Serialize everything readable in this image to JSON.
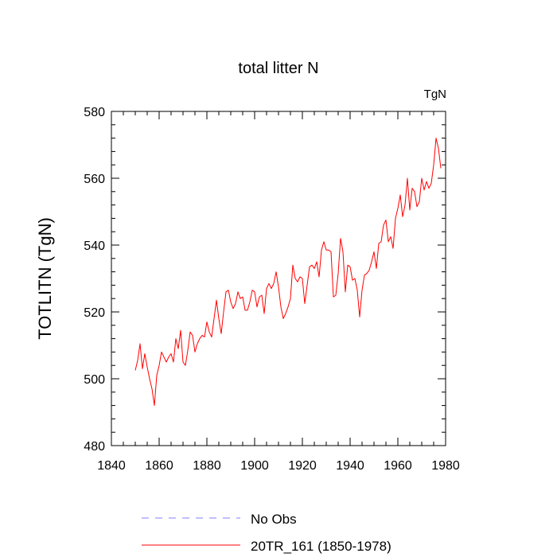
{
  "chart_data": {
    "type": "line",
    "title": "total litter N",
    "units_label": "TgN",
    "ylabel": "TOTLITN  (TgN)",
    "xlabel": "",
    "xlim": [
      1840,
      1980
    ],
    "ylim": [
      480,
      580
    ],
    "x_ticks": [
      1840,
      1860,
      1880,
      1900,
      1920,
      1940,
      1960,
      1980
    ],
    "x_tick_labels": [
      "1840",
      "1860",
      "1880",
      "1900",
      "1920",
      "1940",
      "1960",
      "1980"
    ],
    "y_ticks": [
      480,
      500,
      520,
      540,
      560,
      580
    ],
    "y_tick_labels": [
      "480",
      "500",
      "520",
      "540",
      "560",
      "580"
    ],
    "grid": false,
    "legend_position": "bottom-center",
    "legend": [
      {
        "label": "No Obs",
        "color": "#8080ff",
        "style": "dashed"
      },
      {
        "label": "20TR_161 (1850-1978)",
        "color": "#ff0000",
        "style": "solid"
      }
    ],
    "series": [
      {
        "name": "20TR_161 (1850-1978)",
        "color": "#ff0000",
        "x": [
          1850,
          1851,
          1852,
          1853,
          1854,
          1855,
          1856,
          1857,
          1858,
          1859,
          1860,
          1861,
          1862,
          1863,
          1864,
          1865,
          1866,
          1867,
          1868,
          1869,
          1870,
          1871,
          1872,
          1873,
          1874,
          1875,
          1876,
          1877,
          1878,
          1879,
          1880,
          1881,
          1882,
          1883,
          1884,
          1885,
          1886,
          1887,
          1888,
          1889,
          1890,
          1891,
          1892,
          1893,
          1894,
          1895,
          1896,
          1897,
          1898,
          1899,
          1900,
          1901,
          1902,
          1903,
          1904,
          1905,
          1906,
          1907,
          1908,
          1909,
          1910,
          1911,
          1912,
          1913,
          1914,
          1915,
          1916,
          1917,
          1918,
          1919,
          1920,
          1921,
          1922,
          1923,
          1924,
          1925,
          1926,
          1927,
          1928,
          1929,
          1930,
          1931,
          1932,
          1933,
          1934,
          1935,
          1936,
          1937,
          1938,
          1939,
          1940,
          1941,
          1942,
          1943,
          1944,
          1945,
          1946,
          1947,
          1948,
          1949,
          1950,
          1951,
          1952,
          1953,
          1954,
          1955,
          1956,
          1957,
          1958,
          1959,
          1960,
          1961,
          1962,
          1963,
          1964,
          1965,
          1966,
          1967,
          1968,
          1969,
          1970,
          1971,
          1972,
          1973,
          1974,
          1975,
          1976,
          1977,
          1978
        ],
        "values": [
          502.5,
          505.5,
          510.5,
          503,
          507.5,
          503.5,
          500,
          497,
          492,
          501,
          504,
          508,
          506.5,
          505,
          506.5,
          507.5,
          505,
          512,
          509,
          514.5,
          505,
          504,
          508.5,
          514,
          513,
          508,
          510.5,
          512,
          513,
          512.5,
          517,
          514,
          512.5,
          518,
          523.5,
          518,
          513.5,
          520,
          526,
          526.5,
          523,
          521,
          522.5,
          526,
          524,
          524.5,
          520.5,
          520.5,
          523,
          526.5,
          526,
          521.5,
          524.5,
          525,
          519.5,
          527,
          528.5,
          527,
          528.5,
          532,
          527.5,
          521.5,
          518,
          519.5,
          521.5,
          524,
          534,
          530,
          529,
          530.5,
          530,
          522.5,
          528,
          533.5,
          534,
          533,
          535,
          530.5,
          538.5,
          541,
          538.5,
          538.5,
          538,
          524.5,
          525,
          531.5,
          542,
          538,
          526,
          534,
          533.5,
          529.5,
          530,
          526.5,
          518.5,
          526.5,
          531,
          531.5,
          532.5,
          535,
          538,
          533,
          540.5,
          541,
          546,
          547.5,
          541,
          542.5,
          539,
          548,
          551,
          555,
          548.5,
          552,
          560,
          550.5,
          557,
          556,
          551.5,
          553,
          560,
          556.5,
          559,
          557,
          558.5,
          564,
          572,
          569,
          563
        ]
      }
    ]
  }
}
